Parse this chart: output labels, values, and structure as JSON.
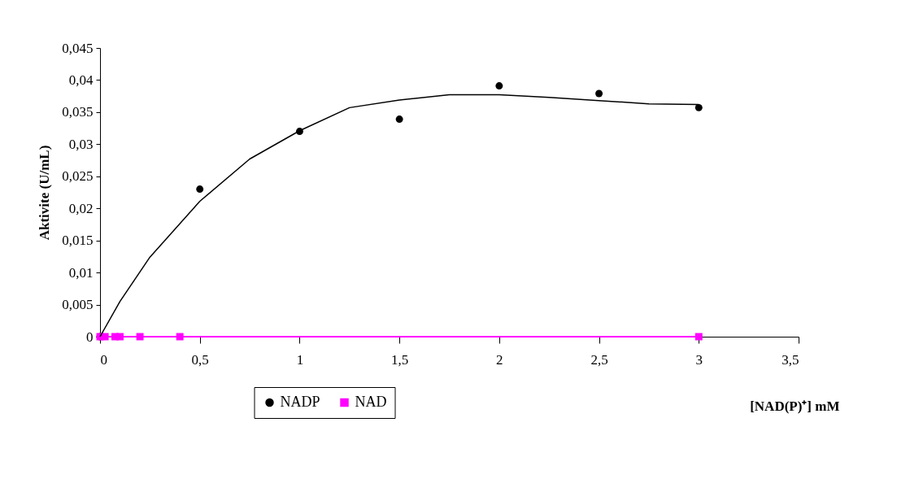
{
  "chart_data": {
    "type": "scatter",
    "xlabel": "[NAD(P)⁺] mM",
    "ylabel": "Aktivite (U/mL)",
    "xlim": [
      0,
      3.5
    ],
    "xticks": [
      {
        "value": 0,
        "label": "0"
      },
      {
        "value": 0.5,
        "label": "0,5"
      },
      {
        "value": 1,
        "label": "1"
      },
      {
        "value": 1.5,
        "label": "1,5"
      },
      {
        "value": 2,
        "label": "2"
      },
      {
        "value": 2.5,
        "label": "2,5"
      },
      {
        "value": 3,
        "label": "3"
      },
      {
        "value": 3.5,
        "label": "3,5"
      }
    ],
    "ylim": [
      0,
      0.045
    ],
    "yticks": [
      {
        "value": 0,
        "label": "0"
      },
      {
        "value": 0.005,
        "label": "0,005"
      },
      {
        "value": 0.01,
        "label": "0,01"
      },
      {
        "value": 0.015,
        "label": "0,015"
      },
      {
        "value": 0.02,
        "label": "0,02"
      },
      {
        "value": 0.025,
        "label": "0,025"
      },
      {
        "value": 0.03,
        "label": "0,03"
      },
      {
        "value": 0.035,
        "label": "0,035"
      },
      {
        "value": 0.04,
        "label": "0,04"
      },
      {
        "value": 0.045,
        "label": "0,045"
      }
    ],
    "grid": false,
    "legend": "bottom",
    "series": [
      {
        "name": "NADP",
        "type": "scatter",
        "marker": "circle",
        "color": "#000000",
        "x": [
          0,
          0.5,
          1,
          1.5,
          2,
          2.5,
          3
        ],
        "values": [
          0,
          0.023,
          0.032,
          0.0339,
          0.0391,
          0.0379,
          0.0357
        ]
      },
      {
        "name": "NAD",
        "type": "line",
        "marker": "square",
        "color": "#ff00ff",
        "x": [
          0,
          0.025,
          0.075,
          0.1,
          0.2,
          0.4,
          3
        ],
        "values": [
          0,
          0,
          0,
          0,
          0,
          0,
          0
        ]
      },
      {
        "type": "line",
        "marker": "none",
        "color": "#000000",
        "x": [
          0,
          0.1,
          0.25,
          0.5,
          0.75,
          1,
          1.25,
          1.5,
          1.75,
          2,
          2.25,
          2.5,
          2.75,
          3
        ],
        "values": [
          0,
          0.0055,
          0.0124,
          0.0211,
          0.0277,
          0.0321,
          0.0357,
          0.0369,
          0.0377,
          0.0377,
          0.0373,
          0.0368,
          0.0363,
          0.0362
        ]
      }
    ]
  }
}
